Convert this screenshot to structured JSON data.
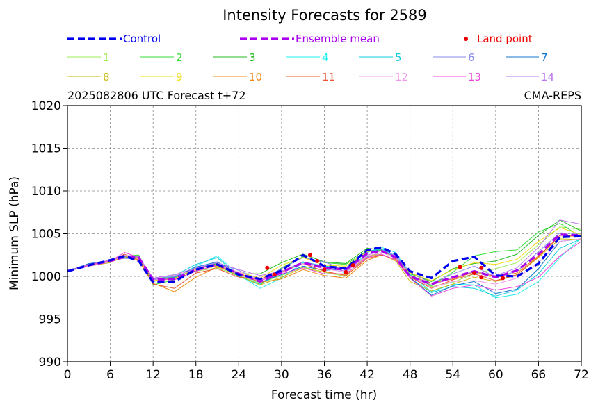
{
  "chart_data": {
    "type": "line",
    "title": "Intensity Forecasts for 2589",
    "subtitle_left": "2025082806 UTC Forecast t+72",
    "subtitle_right": "CMA-REPS",
    "xlabel": "Forecast time (hr)",
    "ylabel": "Minimum SLP (hPa)",
    "xlim": [
      0,
      72
    ],
    "ylim": [
      990,
      1020
    ],
    "xticks": [
      0,
      6,
      12,
      18,
      24,
      30,
      36,
      42,
      48,
      54,
      60,
      66,
      72
    ],
    "yticks": [
      990,
      995,
      1000,
      1005,
      1010,
      1015,
      1020
    ],
    "grid": true,
    "x": [
      0,
      3,
      6,
      8,
      10,
      12,
      15,
      18,
      21,
      24,
      27,
      30,
      33,
      36,
      39,
      42,
      44,
      46,
      48,
      51,
      54,
      57,
      60,
      63,
      66,
      69,
      72
    ],
    "control": {
      "name": "Control",
      "color": "#0000ee",
      "values": [
        1000.6,
        1001.3,
        1001.9,
        1002.4,
        1001.8,
        999.3,
        999.4,
        1000.8,
        1001.4,
        1000.2,
        999.7,
        1000.7,
        1002.5,
        1001.2,
        1000.9,
        1003.1,
        1003.4,
        1002.6,
        1000.6,
        999.8,
        1001.8,
        1002.3,
        1000.1,
        1000.0,
        1001.5,
        1004.6,
        1004.7
      ]
    },
    "ensemble_mean": {
      "name": "Ensemble mean",
      "color": "#aa00ee",
      "values": [
        1000.6,
        1001.3,
        1001.8,
        1002.3,
        1002.2,
        999.6,
        999.7,
        1000.8,
        1001.4,
        1000.3,
        999.4,
        1000.5,
        1001.6,
        1001.0,
        1000.8,
        1002.7,
        1003.0,
        1002.2,
        1000.0,
        999.1,
        999.9,
        1000.6,
        999.9,
        1000.7,
        1002.6,
        1004.9,
        1004.8
      ]
    },
    "land_points": {
      "name": "Land point",
      "color": "#ee0000",
      "points": [
        [
          28,
          1001.0
        ],
        [
          29,
          1000.2
        ],
        [
          34,
          1002.5
        ],
        [
          35,
          1001.8
        ],
        [
          36,
          1000.8
        ],
        [
          39,
          1000.5
        ],
        [
          40,
          1001.3
        ],
        [
          55,
          1001.1
        ],
        [
          57,
          1000.4
        ],
        [
          58,
          1001.0
        ],
        [
          58,
          999.9
        ],
        [
          61,
          999.8
        ]
      ]
    },
    "members": [
      {
        "name": "1",
        "color": "#99ee55",
        "values": [
          1000.6,
          1001.3,
          1001.8,
          1002.2,
          1002.3,
          999.6,
          1000.2,
          1000.6,
          1001.0,
          1000.1,
          999.2,
          1000.1,
          1001.1,
          1000.5,
          1000.0,
          1002.3,
          1002.5,
          1002.0,
          999.9,
          998.8,
          999.3,
          1000.3,
          1000.9,
          1001.6,
          1003.7,
          1005.8,
          1005.5
        ]
      },
      {
        "name": "2",
        "color": "#33dd33",
        "values": [
          1000.6,
          1001.4,
          1001.9,
          1002.4,
          1002.5,
          999.0,
          999.6,
          1000.9,
          1001.3,
          1000.0,
          999.0,
          1001.0,
          1002.3,
          1001.6,
          1001.4,
          1003.0,
          1003.1,
          1002.3,
          1000.2,
          998.9,
          1000.5,
          1002.4,
          1002.9,
          1003.1,
          1005.2,
          1006.2,
          1004.6
        ]
      },
      {
        "name": "3",
        "color": "#22bb22",
        "values": [
          1000.6,
          1001.4,
          1001.9,
          1002.3,
          1002.2,
          999.4,
          1000.0,
          1000.9,
          1001.5,
          1000.3,
          1000.3,
          1001.6,
          1002.6,
          1001.7,
          1001.5,
          1003.3,
          1003.1,
          1002.3,
          1000.3,
          999.4,
          1000.9,
          1001.5,
          1001.8,
          1002.6,
          1004.8,
          1006.6,
          1005.3
        ]
      },
      {
        "name": "4",
        "color": "#22eeee",
        "values": [
          1000.6,
          1001.3,
          1001.8,
          1002.3,
          1002.2,
          999.7,
          999.8,
          1001.2,
          1002.4,
          1000.2,
          998.6,
          999.8,
          1001.6,
          1001.1,
          1000.4,
          1002.8,
          1003.4,
          1002.8,
          1000.2,
          998.2,
          999.1,
          999.0,
          997.5,
          997.9,
          999.4,
          1002.2,
          1004.5
        ]
      },
      {
        "name": "5",
        "color": "#11ccdd",
        "values": [
          1000.6,
          1001.2,
          1001.8,
          1002.3,
          1002.1,
          999.6,
          1000.1,
          1001.4,
          1002.2,
          1000.0,
          999.1,
          1000.4,
          1001.7,
          1001.2,
          1001.0,
          1002.9,
          1003.2,
          1002.4,
          999.8,
          998.1,
          998.8,
          998.6,
          997.7,
          998.4,
          1000.3,
          1003.3,
          1004.4
        ]
      },
      {
        "name": "6",
        "color": "#8888ee",
        "values": [
          1000.6,
          1001.4,
          1001.9,
          1002.1,
          1002.1,
          999.6,
          1000.0,
          1000.9,
          1001.6,
          1000.7,
          999.6,
          1000.9,
          1002.2,
          1001.7,
          1000.7,
          1002.3,
          1002.8,
          1002.5,
          1000.5,
          999.2,
          1000.3,
          1001.2,
          999.9,
          1000.6,
          1002.9,
          1005.1,
          1005.0
        ]
      },
      {
        "name": "7",
        "color": "#1177cc",
        "values": [
          1000.6,
          1001.5,
          1001.8,
          1002.2,
          1002.3,
          999.4,
          999.9,
          1001.1,
          1001.7,
          1000.3,
          999.3,
          1000.2,
          1001.2,
          1000.7,
          1000.9,
          1003.0,
          1003.0,
          1002.3,
          999.9,
          997.8,
          998.9,
          999.4,
          998.0,
          998.5,
          1000.9,
          1004.1,
          1004.4
        ]
      },
      {
        "name": "8",
        "color": "#ccbb11",
        "values": [
          1000.6,
          1001.2,
          1001.6,
          1002.5,
          1002.2,
          999.5,
          999.8,
          1000.7,
          1001.2,
          1000.1,
          999.0,
          999.9,
          1001.0,
          1000.5,
          1000.2,
          1002.4,
          1002.6,
          1001.8,
          999.4,
          998.3,
          999.1,
          999.9,
          999.4,
          1000.2,
          1002.2,
          1004.4,
          1004.3
        ]
      },
      {
        "name": "9",
        "color": "#eedd11",
        "values": [
          1000.6,
          1001.3,
          1001.7,
          1002.2,
          1002.1,
          999.5,
          999.7,
          1000.9,
          1001.3,
          1000.5,
          999.8,
          1001.3,
          1002.2,
          1001.3,
          1001.2,
          1002.9,
          1003.0,
          1002.1,
          1000.4,
          999.5,
          1000.8,
          1001.6,
          1001.4,
          1002.0,
          1004.1,
          1005.7,
          1004.9
        ]
      },
      {
        "name": "10",
        "color": "#ee8811",
        "values": [
          1000.6,
          1001.2,
          1001.7,
          1002.4,
          1001.8,
          999.2,
          998.2,
          999.9,
          1001.1,
          1000.4,
          999.3,
          999.7,
          1000.8,
          1000.1,
          999.8,
          1001.9,
          1002.5,
          1002.0,
          1000.1,
          999.2,
          999.7,
          1000.5,
          1000.0,
          1000.4,
          1002.4,
          1004.6,
          1004.8
        ]
      },
      {
        "name": "11",
        "color": "#ee5533",
        "values": [
          1000.6,
          1001.4,
          1001.8,
          1002.6,
          1001.9,
          999.1,
          998.6,
          1000.4,
          1000.9,
          999.9,
          999.7,
          1000.5,
          1001.5,
          1000.6,
          1000.1,
          1002.1,
          1002.5,
          1002.0,
          999.9,
          998.6,
          999.6,
          1000.3,
          999.5,
          1000.2,
          1002.3,
          1004.8,
          1004.8
        ]
      },
      {
        "name": "12",
        "color": "#ee99ee",
        "values": [
          1000.6,
          1001.2,
          1001.7,
          1002.5,
          1002.3,
          999.8,
          1000.1,
          1000.8,
          1001.4,
          1000.5,
          999.6,
          1000.4,
          1001.5,
          1000.9,
          1000.5,
          1002.4,
          1002.8,
          1002.2,
          1000.0,
          998.7,
          999.4,
          999.5,
          999.1,
          999.8,
          1001.6,
          1004.1,
          1004.4
        ]
      },
      {
        "name": "13",
        "color": "#ee44dd",
        "values": [
          1000.6,
          1001.3,
          1001.8,
          1002.8,
          1002.2,
          999.7,
          999.6,
          1000.6,
          1001.3,
          1000.2,
          999.5,
          1000.3,
          1001.0,
          1000.3,
          1000.3,
          1002.2,
          1002.6,
          1001.9,
          999.8,
          997.7,
          998.6,
          999.0,
          998.4,
          998.8,
          999.9,
          1002.4,
          1004.1
        ]
      },
      {
        "name": "14",
        "color": "#bb77ee",
        "values": [
          1000.6,
          1001.4,
          1001.9,
          1002.4,
          1002.3,
          999.8,
          1000.2,
          1001.0,
          1001.6,
          1000.8,
          1000.1,
          1000.6,
          1001.7,
          1001.1,
          1000.6,
          1002.5,
          1003.0,
          1002.4,
          1000.1,
          999.0,
          999.8,
          1000.6,
          1000.1,
          1001.0,
          1003.4,
          1006.6,
          1006.1
        ]
      }
    ]
  }
}
